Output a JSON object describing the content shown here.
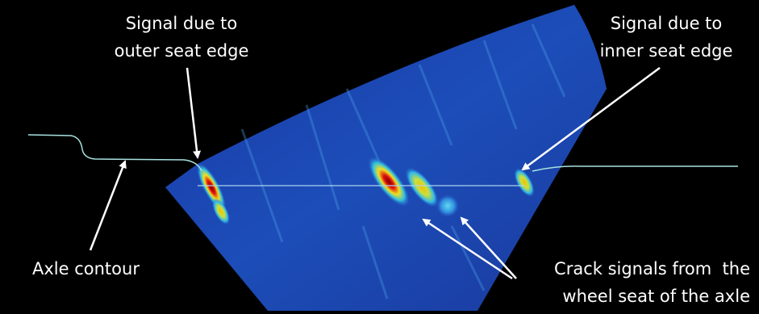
{
  "annotations": {
    "outer_seat": {
      "lines": [
        "Signal due to",
        "outer seat edge"
      ]
    },
    "inner_seat": {
      "lines": [
        "Signal due to",
        "inner seat edge"
      ]
    },
    "axle_contour": {
      "lines": [
        "Axle contour"
      ]
    },
    "crack_signals": {
      "lines": [
        "Crack signals from  the",
        "wheel seat of the axle"
      ]
    }
  }
}
